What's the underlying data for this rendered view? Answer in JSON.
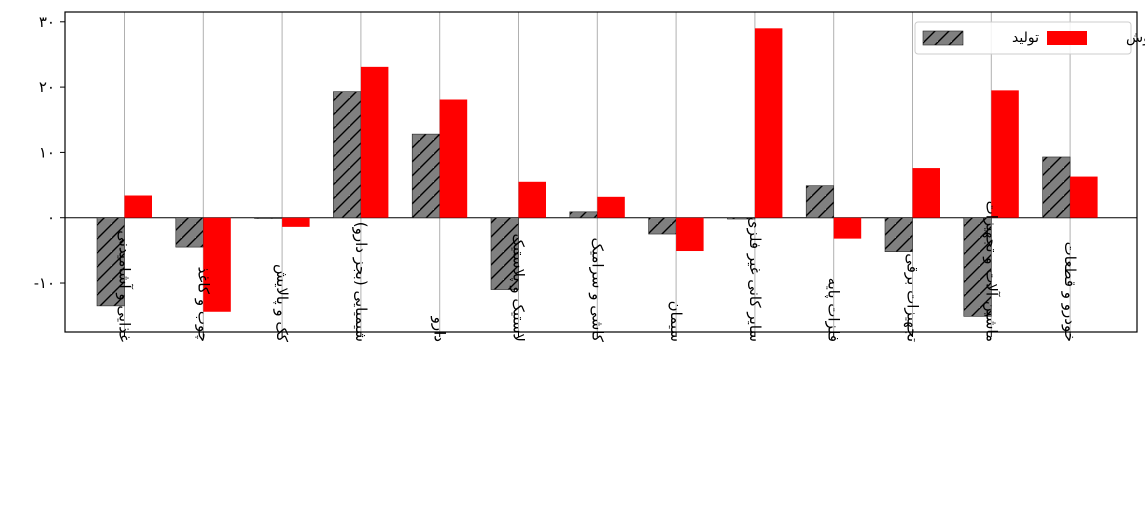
{
  "chart_data": {
    "type": "bar",
    "categories": [
      "غذایی و آشامیدنی",
      "چوب و کاغذ",
      "کک و پالایش",
      "شیمیایی (بجز دارو)",
      "دارو",
      "لاستیک و پلاستیک",
      "کاشی و سرامیک",
      "سیمان",
      "سایر کانی غیر فلزی",
      "فلزات پایه",
      "تجهیزات برقی",
      "ماشین آلات و تجهیزات",
      "خودرو و قطعات"
    ],
    "series": [
      {
        "name": "تولید",
        "color": "#808080",
        "hatch": "diagonal",
        "values": [
          -13.5,
          -4.5,
          0,
          19.3,
          12.8,
          -11,
          0.9,
          -2.5,
          -0.2,
          4.9,
          -5.2,
          -15.1,
          9.3
        ]
      },
      {
        "name": "فروش",
        "color": "#ff0000",
        "values": [
          3.4,
          -14.4,
          -1.4,
          23.1,
          18.1,
          5.5,
          3.2,
          -5.1,
          29,
          -3.2,
          7.6,
          19.5,
          6.3
        ]
      }
    ],
    "yticks": [
      -10,
      0,
      10,
      20,
      30
    ],
    "ytick_labels": [
      "-۱۰",
      "۰",
      "۱۰",
      "۲۰",
      "۳۰"
    ],
    "ylim": [
      -17.5,
      31.5
    ],
    "grid": "vertical",
    "legend_position": "top-right",
    "title": "",
    "xlabel": "",
    "ylabel": ""
  }
}
